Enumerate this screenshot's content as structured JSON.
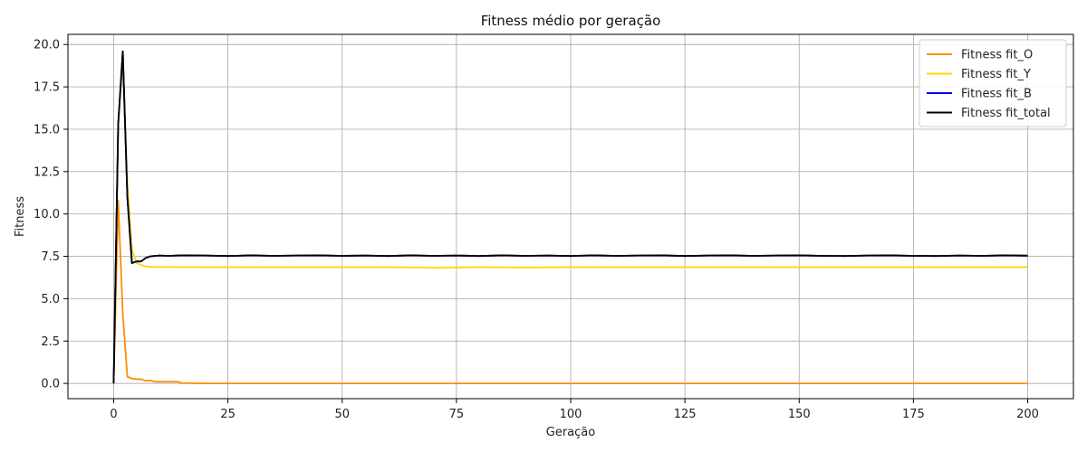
{
  "chart_data": {
    "type": "line",
    "title": "Fitness médio por geração",
    "xlabel": "Geração",
    "ylabel": "Fitness",
    "xlim": [
      -10,
      210
    ],
    "ylim": [
      -0.9,
      20.6
    ],
    "xticks": [
      0,
      25,
      50,
      75,
      100,
      125,
      150,
      175,
      200
    ],
    "yticks": [
      0.0,
      2.5,
      5.0,
      7.5,
      10.0,
      12.5,
      15.0,
      17.5,
      20.0
    ],
    "xtick_labels": [
      "0",
      "25",
      "50",
      "75",
      "100",
      "125",
      "150",
      "175",
      "200"
    ],
    "ytick_labels": [
      "0.0",
      "2.5",
      "5.0",
      "7.5",
      "10.0",
      "12.5",
      "15.0",
      "17.5",
      "20.0"
    ],
    "grid": true,
    "legend_position": "top-right",
    "series": [
      {
        "name": "Fitness fit_O",
        "color": "#ff8c00",
        "stroke_width": 1.8,
        "x": [
          0,
          1,
          2,
          3,
          4,
          5,
          6,
          7,
          8,
          9,
          10,
          12,
          14,
          15,
          20,
          50,
          100,
          150,
          200
        ],
        "y": [
          0.0,
          10.8,
          4.1,
          0.4,
          0.28,
          0.25,
          0.25,
          0.15,
          0.18,
          0.1,
          0.1,
          0.1,
          0.1,
          0.02,
          0.0,
          0.0,
          0.0,
          0.0,
          0.0
        ]
      },
      {
        "name": "Fitness fit_Y",
        "color": "#ffd700",
        "stroke_width": 1.8,
        "x": [
          0,
          1,
          2,
          3,
          4,
          5,
          6,
          7,
          8,
          10,
          20,
          40,
          60,
          71,
          80,
          90,
          100,
          120,
          140,
          160,
          180,
          200
        ],
        "y": [
          0.0,
          15.5,
          18.9,
          11.8,
          7.9,
          7.1,
          7.0,
          6.9,
          6.88,
          6.87,
          6.86,
          6.86,
          6.86,
          6.83,
          6.86,
          6.84,
          6.86,
          6.86,
          6.86,
          6.86,
          6.86,
          6.86
        ]
      },
      {
        "name": "Fitness fit_B",
        "color": "#0000ee",
        "stroke_width": 1.8,
        "x": [
          0,
          1,
          2,
          3,
          4,
          5,
          6,
          7,
          8,
          10,
          12,
          15,
          20,
          25,
          30,
          35,
          40,
          45,
          50,
          55,
          60,
          65,
          70,
          75,
          80,
          85,
          90,
          95,
          100,
          105,
          110,
          115,
          120,
          125,
          130,
          135,
          140,
          145,
          150,
          155,
          160,
          165,
          170,
          175,
          180,
          185,
          190,
          195,
          200
        ],
        "y": [
          0.0,
          15.3,
          19.6,
          11.0,
          7.1,
          7.2,
          7.2,
          7.4,
          7.5,
          7.55,
          7.53,
          7.56,
          7.55,
          7.52,
          7.56,
          7.53,
          7.55,
          7.56,
          7.53,
          7.55,
          7.52,
          7.56,
          7.53,
          7.55,
          7.52,
          7.56,
          7.53,
          7.55,
          7.52,
          7.56,
          7.53,
          7.55,
          7.56,
          7.52,
          7.55,
          7.56,
          7.53,
          7.55,
          7.56,
          7.53,
          7.52,
          7.55,
          7.56,
          7.53,
          7.52,
          7.55,
          7.53,
          7.56,
          7.54
        ]
      },
      {
        "name": "Fitness fit_total",
        "color": "#000000",
        "stroke_width": 1.8,
        "x": [
          0,
          1,
          2,
          3,
          4,
          5,
          6,
          7,
          8,
          10,
          12,
          15,
          20,
          25,
          30,
          35,
          40,
          45,
          50,
          55,
          60,
          65,
          70,
          75,
          80,
          85,
          90,
          95,
          100,
          105,
          110,
          115,
          120,
          125,
          130,
          135,
          140,
          145,
          150,
          155,
          160,
          165,
          170,
          175,
          180,
          185,
          190,
          195,
          200
        ],
        "y": [
          0.0,
          15.3,
          19.6,
          11.0,
          7.1,
          7.2,
          7.2,
          7.4,
          7.5,
          7.55,
          7.53,
          7.56,
          7.55,
          7.52,
          7.56,
          7.53,
          7.55,
          7.56,
          7.53,
          7.55,
          7.52,
          7.56,
          7.53,
          7.55,
          7.52,
          7.56,
          7.53,
          7.55,
          7.52,
          7.56,
          7.53,
          7.55,
          7.56,
          7.52,
          7.55,
          7.56,
          7.53,
          7.55,
          7.56,
          7.53,
          7.52,
          7.55,
          7.56,
          7.53,
          7.52,
          7.55,
          7.53,
          7.56,
          7.54
        ]
      }
    ]
  }
}
